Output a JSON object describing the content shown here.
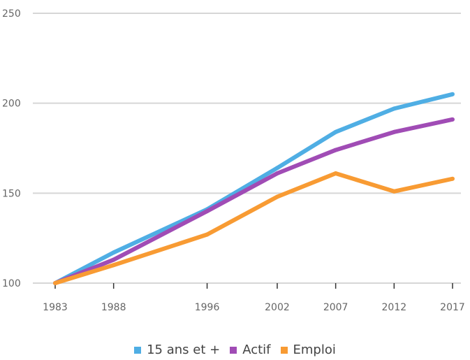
{
  "chart_data": {
    "type": "line",
    "title": "",
    "xlabel": "",
    "ylabel": "",
    "x": [
      1983,
      1988,
      1996,
      2002,
      2007,
      2012,
      2017
    ],
    "x_tick_labels": [
      "1983",
      "1988",
      "1996",
      "2002",
      "2007",
      "2012",
      "2017"
    ],
    "y_ticks": [
      100,
      150,
      200,
      250
    ],
    "y_tick_labels": [
      "100",
      "150",
      "200",
      "250"
    ],
    "ylim": [
      100,
      250
    ],
    "xlim": [
      1983,
      2017
    ],
    "grid": true,
    "legend_position": "bottom",
    "series": [
      {
        "name": "15 ans et +",
        "color": "#4FAEE4",
        "values": [
          100,
          117,
          141,
          164,
          184,
          197,
          205
        ]
      },
      {
        "name": "Actif",
        "color": "#A04CB5",
        "values": [
          100,
          113,
          140,
          161,
          174,
          184,
          191
        ]
      },
      {
        "name": "Emploi",
        "color": "#F89B33",
        "values": [
          100,
          110,
          127,
          148,
          161,
          151,
          158
        ]
      }
    ]
  }
}
